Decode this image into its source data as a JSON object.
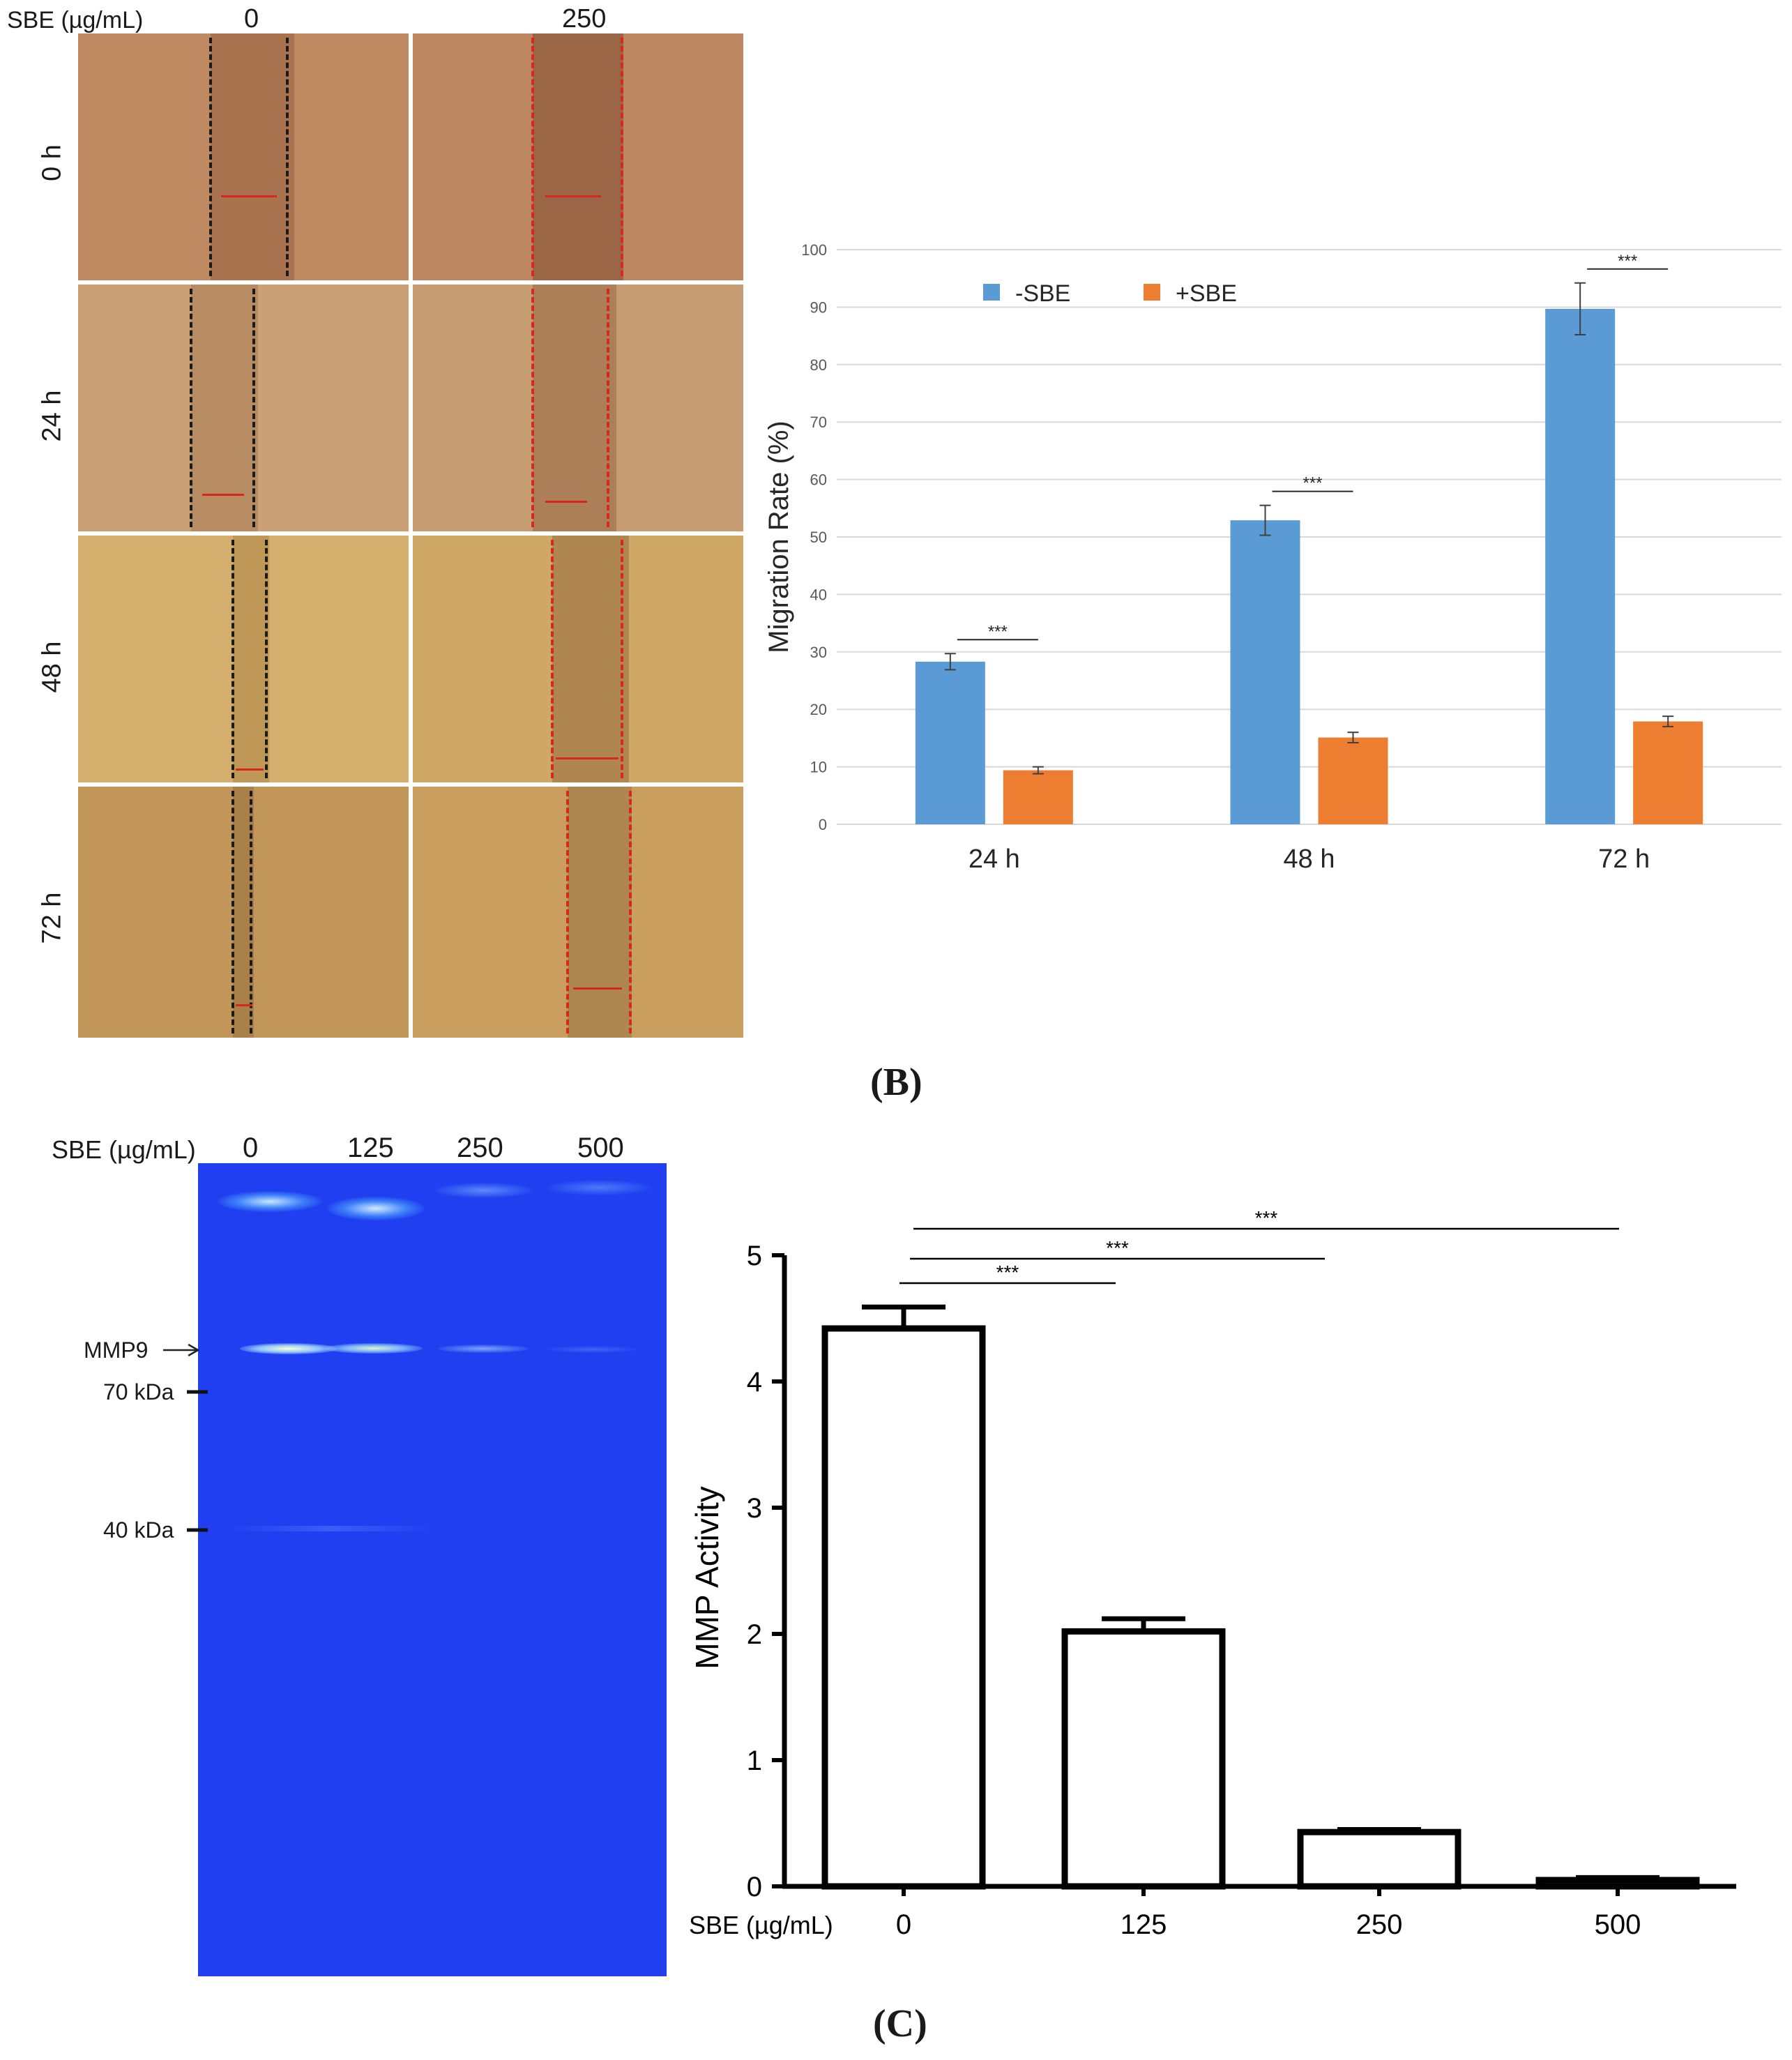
{
  "top_panel": {
    "conc_label": "SBE (µg/mL)",
    "columns": [
      "0",
      "250"
    ],
    "rows": [
      "0 h",
      "24 h",
      "48 h",
      "72 h"
    ],
    "tile_colors": {
      "0 h": "#c08a60",
      "24 h": "#c9a074",
      "48 h": "#d1ad6a",
      "72 h": "#c39a5c"
    }
  },
  "panel_labels": {
    "b": "(B)",
    "c": "(C)"
  },
  "gel": {
    "conc_label": "SBE (µg/mL)",
    "lanes": [
      "0",
      "125",
      "250",
      "500"
    ],
    "markers": [
      "MMP9",
      "70 kDa",
      "40 kDa"
    ],
    "band_intensity_mmp9": [
      1.0,
      0.75,
      0.25,
      0.05
    ],
    "background_color": "#1f3ff0"
  },
  "chart_data": [
    {
      "type": "bar",
      "title": "",
      "xlabel": "",
      "ylabel": "Migration Rate (%)",
      "categories": [
        "24 h",
        "48 h",
        "72 h"
      ],
      "series": [
        {
          "name": "-SBE",
          "color": "#5b9bd5",
          "values": [
            28.3,
            52.9,
            89.7
          ],
          "errors": [
            1.4,
            2.6,
            4.5
          ]
        },
        {
          "name": "+SBE",
          "color": "#ed7d31",
          "values": [
            9.4,
            15.1,
            17.9
          ],
          "errors": [
            0.6,
            0.9,
            0.9
          ]
        }
      ],
      "ylim": [
        0,
        100
      ],
      "yticks": [
        0,
        10,
        20,
        30,
        40,
        50,
        60,
        70,
        80,
        90,
        100
      ],
      "grid": true,
      "legend": "top-left",
      "significance": [
        "***",
        "***",
        "***"
      ]
    },
    {
      "type": "bar",
      "title": "",
      "xlabel": "SBE (µg/mL)",
      "ylabel": "MMP Activity",
      "categories": [
        "0",
        "125",
        "250",
        "500"
      ],
      "values": [
        4.42,
        2.02,
        0.43,
        0.05
      ],
      "errors": [
        0.17,
        0.1,
        0.02,
        0.02
      ],
      "ylim": [
        0,
        5
      ],
      "yticks": [
        0,
        1,
        2,
        3,
        4,
        5
      ],
      "grid": false,
      "comparisons": [
        {
          "from": "0",
          "to": "125",
          "label": "***"
        },
        {
          "from": "0",
          "to": "250",
          "label": "***"
        },
        {
          "from": "0",
          "to": "500",
          "label": "***"
        }
      ]
    }
  ]
}
